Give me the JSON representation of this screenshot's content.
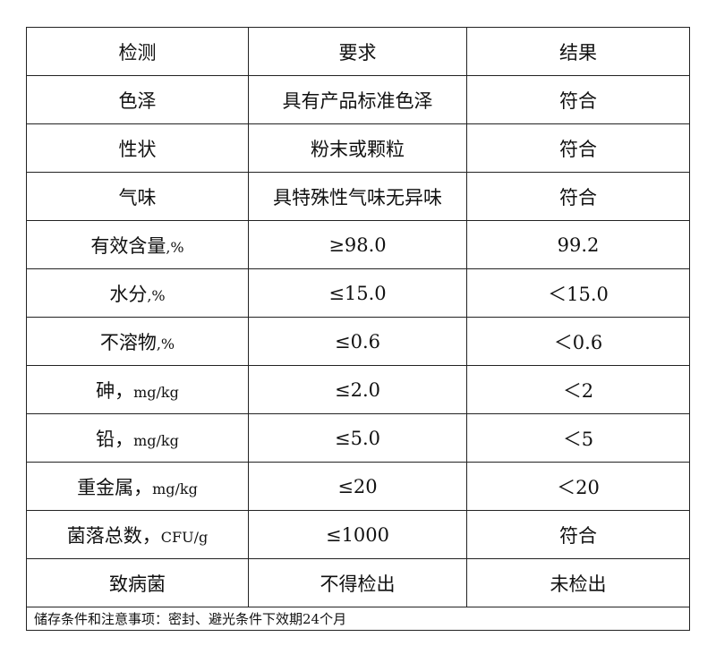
{
  "headers": [
    "检测",
    "要求",
    "结果"
  ],
  "rows": [
    {
      "item": "色泽",
      "unit": "",
      "requirement": "具有产品标准色泽",
      "result": "符合"
    },
    {
      "item": "性状",
      "unit": "",
      "requirement": "粉末或颗粒",
      "result": "符合"
    },
    {
      "item": "气味",
      "unit": "",
      "requirement": "具特殊性气味无异味",
      "result": "符合"
    },
    {
      "item": "有效含量",
      "unit": ",%",
      "requirement": "≥98.0",
      "result": "99.2"
    },
    {
      "item": "水分",
      "unit": ",%",
      "requirement": "≤15.0",
      "result": "＜15.0"
    },
    {
      "item": "不溶物",
      "unit": ",%",
      "requirement": "≤0.6",
      "result": "＜0.6"
    },
    {
      "item": "砷，",
      "unit": "mg/kg",
      "requirement": "≤2.0",
      "result": "＜2"
    },
    {
      "item": "铅，",
      "unit": "mg/kg",
      "requirement": "≤5.0",
      "result": "＜5"
    },
    {
      "item": "重金属，",
      "unit": "mg/kg",
      "requirement": "≤20",
      "result": "＜20"
    },
    {
      "item": "菌落总数，",
      "unit": "CFU/g",
      "requirement": "≤1000",
      "result": "符合"
    },
    {
      "item": "致病菌",
      "unit": "",
      "requirement": "不得检出",
      "result": "未检出"
    }
  ],
  "note": "储存条件和注意事项：密封、避光条件下效期24个月"
}
